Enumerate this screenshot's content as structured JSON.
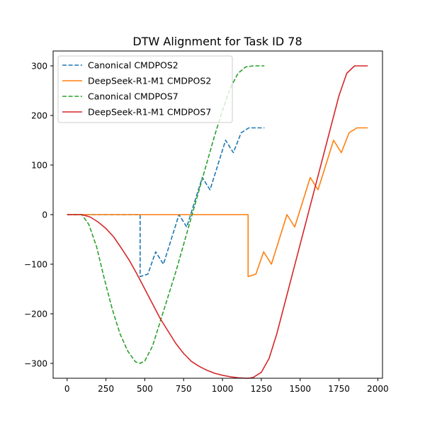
{
  "chart_data": {
    "type": "line",
    "title": "DTW Alignment for Task ID 78",
    "xlabel": "",
    "ylabel": "",
    "xlim": [
      -90,
      2030
    ],
    "ylim": [
      -330,
      330
    ],
    "xticks": [
      0,
      250,
      500,
      750,
      1000,
      1250,
      1500,
      1750,
      2000
    ],
    "yticks": [
      -300,
      -200,
      -100,
      0,
      100,
      200,
      300
    ],
    "xtick_labels": [
      "0",
      "250",
      "500",
      "750",
      "1000",
      "1250",
      "1500",
      "1750",
      "2000"
    ],
    "ytick_labels": [
      "−300",
      "−200",
      "−100",
      "0",
      "100",
      "200",
      "300"
    ],
    "grid": false,
    "legend_position": "top-left",
    "series": [
      {
        "name": "Canonical CMDPOS2",
        "color": "#1f77b4",
        "dash": "dashed",
        "x": [
          0,
          470,
          470,
          520,
          570,
          620,
          720,
          770,
          870,
          920,
          1020,
          1070,
          1120,
          1170,
          1270
        ],
        "y": [
          0,
          0,
          -125,
          -120,
          -75,
          -100,
          0,
          -25,
          75,
          50,
          150,
          125,
          165,
          175,
          175
        ]
      },
      {
        "name": "DeepSeek-R1-M1 CMDPOS2",
        "color": "#ff7f0e",
        "dash": "solid",
        "x": [
          0,
          1165,
          1165,
          1215,
          1265,
          1315,
          1415,
          1465,
          1565,
          1615,
          1715,
          1765,
          1815,
          1865,
          1935
        ],
        "y": [
          0,
          0,
          -125,
          -120,
          -75,
          -100,
          0,
          -25,
          75,
          50,
          150,
          125,
          165,
          175,
          175
        ]
      },
      {
        "name": "Canonical CMDPOS7",
        "color": "#2ca02c",
        "dash": "dashed",
        "x": [
          0,
          95,
          140,
          190,
          240,
          290,
          340,
          390,
          440,
          470,
          500,
          550,
          600,
          650,
          700,
          750,
          800,
          850,
          900,
          950,
          1000,
          1050,
          1100,
          1150,
          1200,
          1270
        ],
        "y": [
          0,
          0,
          -20,
          -65,
          -130,
          -190,
          -240,
          -275,
          -297,
          -300,
          -295,
          -265,
          -215,
          -165,
          -115,
          -60,
          -5,
          50,
          105,
          160,
          210,
          255,
          285,
          298,
          300,
          300
        ]
      },
      {
        "name": "DeepSeek-R1-M1 CMDPOS7",
        "color": "#d62728",
        "dash": "solid",
        "x": [
          0,
          95,
          150,
          200,
          250,
          300,
          350,
          400,
          450,
          500,
          550,
          600,
          650,
          700,
          750,
          800,
          850,
          900,
          950,
          1000,
          1050,
          1100,
          1150,
          1170,
          1200,
          1250,
          1300,
          1350,
          1400,
          1450,
          1500,
          1550,
          1600,
          1650,
          1700,
          1750,
          1800,
          1850,
          1935
        ],
        "y": [
          0,
          0,
          -5,
          -15,
          -28,
          -45,
          -68,
          -92,
          -120,
          -150,
          -180,
          -210,
          -235,
          -260,
          -280,
          -296,
          -306,
          -314,
          -320,
          -324,
          -327,
          -329,
          -330,
          -330,
          -328,
          -318,
          -290,
          -240,
          -180,
          -120,
          -60,
          0,
          60,
          120,
          180,
          240,
          285,
          300,
          300
        ]
      }
    ]
  }
}
